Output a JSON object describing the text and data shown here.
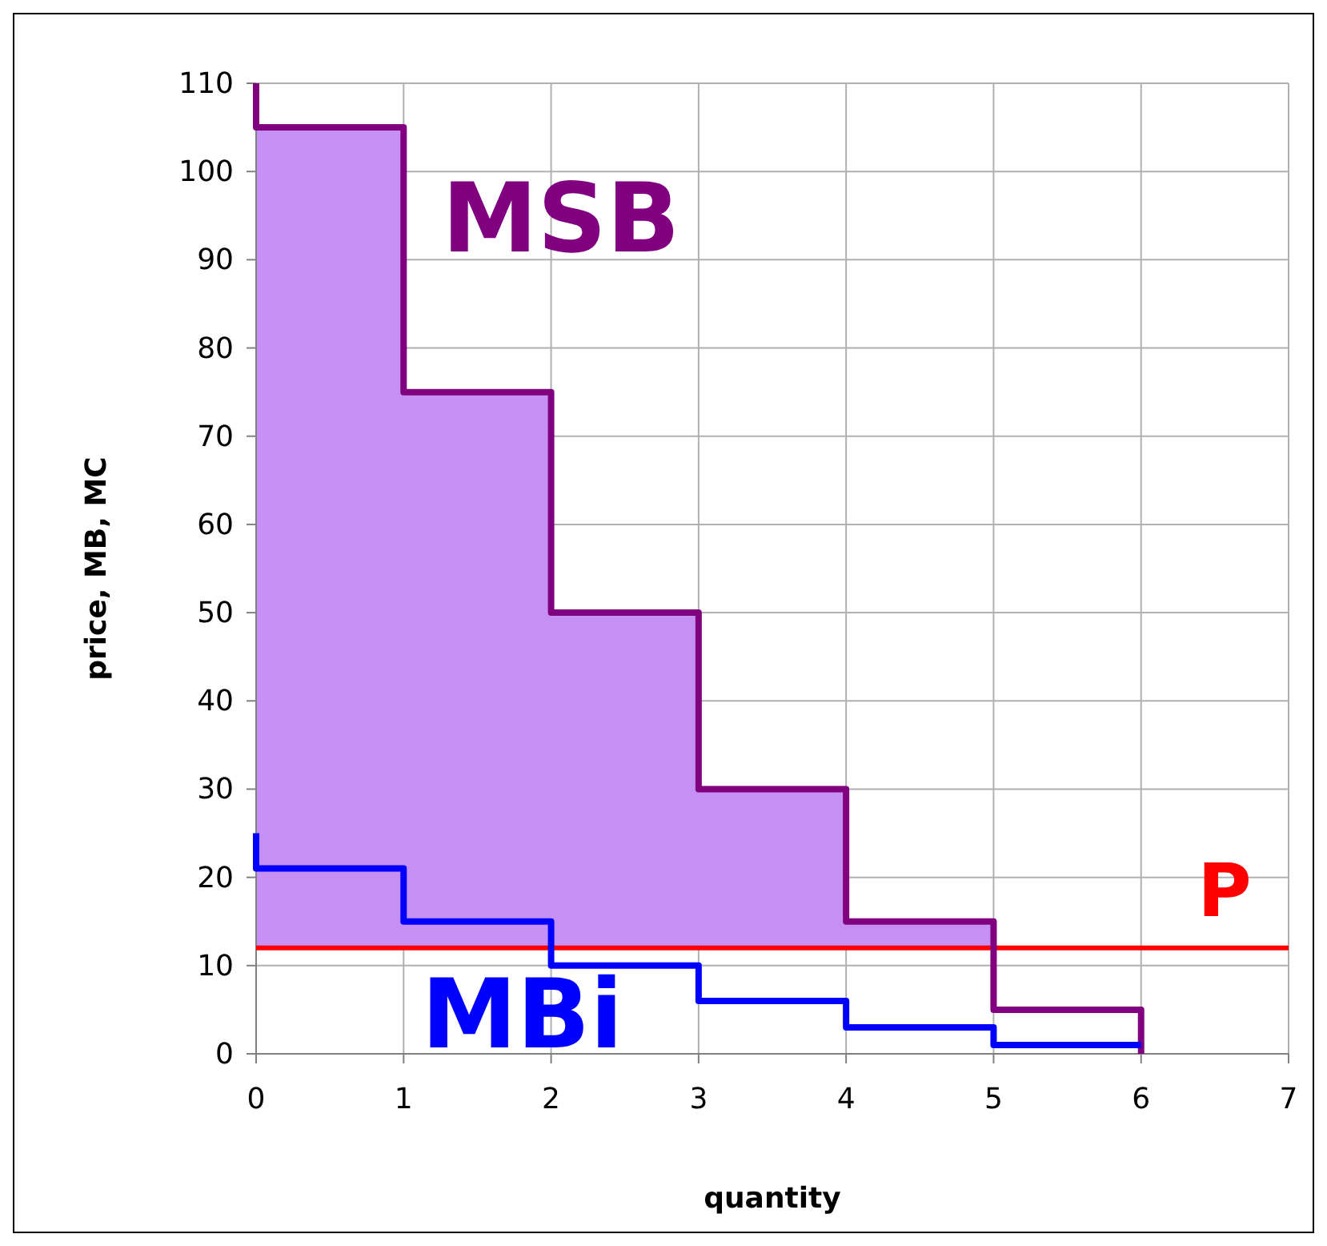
{
  "chart_data": {
    "type": "step",
    "xlabel": "quantity",
    "ylabel": "price, MB, MC",
    "series": [
      {
        "name": "MSB",
        "color": "#800080",
        "x": [
          0,
          0,
          1,
          2,
          3,
          4,
          5,
          6
        ],
        "values": [
          110,
          105,
          75,
          50,
          30,
          15,
          5,
          0
        ],
        "lower": [
          null,
          12,
          12,
          12,
          12,
          12,
          12,
          null
        ],
        "upper": [
          null,
          105,
          75,
          50,
          30,
          15,
          12,
          null
        ]
      },
      {
        "name": "MBi",
        "color": "#0000ff",
        "x": [
          0,
          0,
          1,
          2,
          3,
          4,
          5,
          6
        ],
        "values": [
          25,
          21,
          15,
          10,
          6,
          3,
          1,
          1
        ]
      }
    ],
    "ref_lines": [
      {
        "axis": "y",
        "value": 12,
        "label": "P",
        "color": "#ff0000"
      }
    ],
    "xlim": [
      0,
      7
    ],
    "xticks": [
      0,
      1,
      2,
      3,
      4,
      5,
      6,
      7
    ],
    "ylim": [
      0,
      110
    ],
    "yticks": [
      0,
      10,
      20,
      30,
      40,
      50,
      60,
      70,
      80,
      90,
      100,
      110
    ],
    "grid": true
  }
}
